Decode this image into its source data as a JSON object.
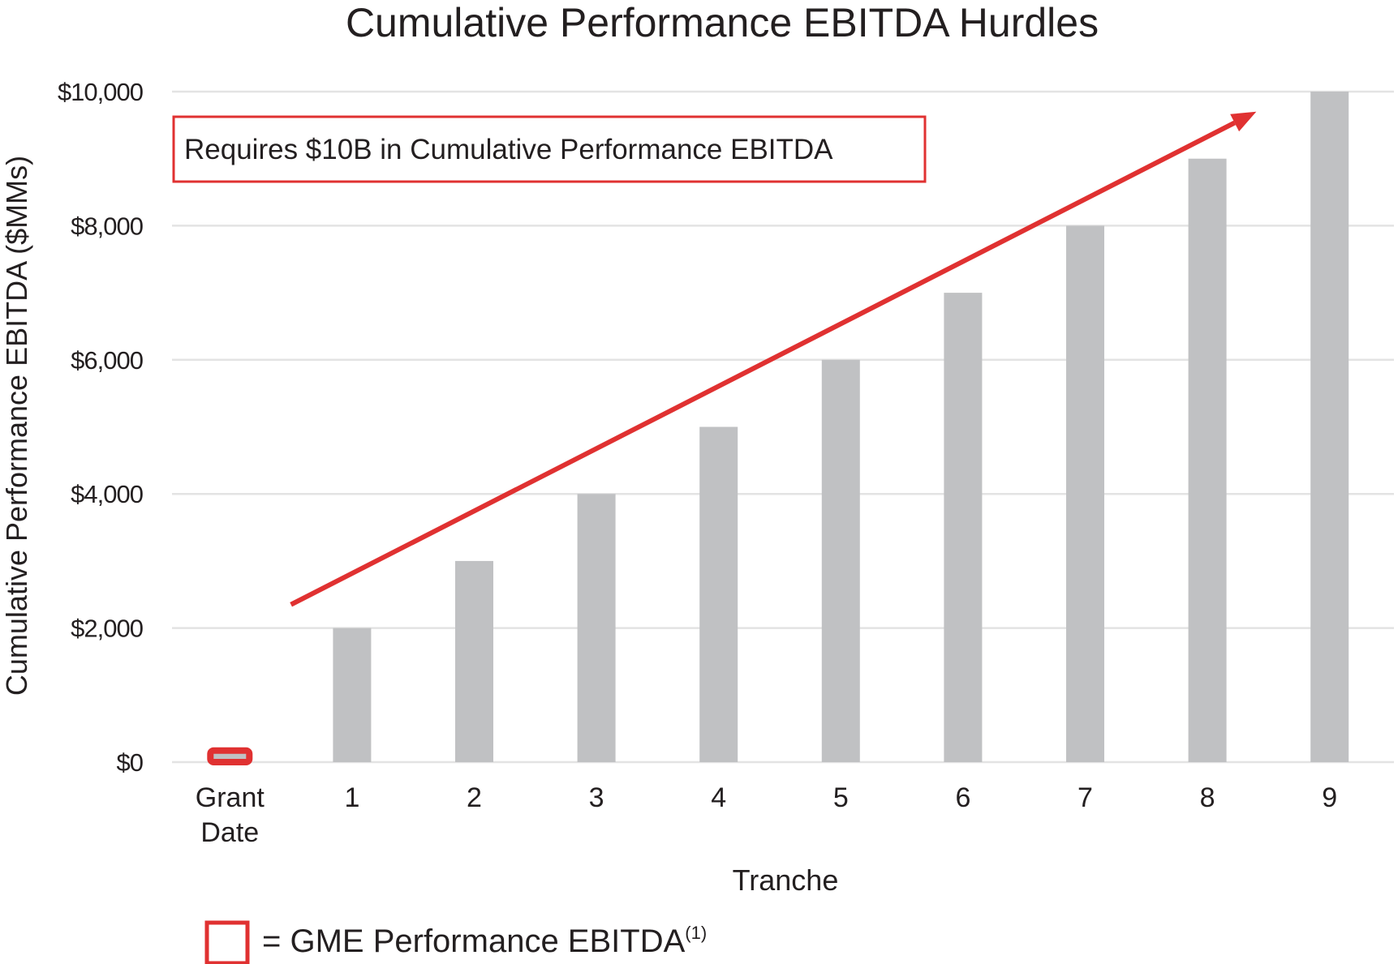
{
  "chart_data": {
    "type": "bar",
    "title": "Cumulative Performance EBITDA Hurdles",
    "xlabel": "Tranche",
    "ylabel": "Cumulative Performance EBITDA ($MMs)",
    "categories": [
      [
        "Grant",
        "Date"
      ],
      [
        "1"
      ],
      [
        "2"
      ],
      [
        "3"
      ],
      [
        "4"
      ],
      [
        "5"
      ],
      [
        "6"
      ],
      [
        "7"
      ],
      [
        "8"
      ],
      [
        "9"
      ]
    ],
    "values": [
      100,
      2000,
      3000,
      4000,
      5000,
      6000,
      7000,
      8000,
      9000,
      10000
    ],
    "highlighted": [
      true,
      false,
      false,
      false,
      false,
      false,
      false,
      false,
      false,
      false
    ],
    "ylim": [
      0,
      10000
    ],
    "yticks": [
      0,
      2000,
      4000,
      6000,
      8000,
      10000
    ],
    "ytick_labels": [
      "$0",
      "$2,000",
      "$4,000",
      "$6,000",
      "$8,000",
      "$10,000"
    ],
    "grid": true,
    "annotation": {
      "text": "Requires $10B in Cumulative Performance EBITDA",
      "arrow": {
        "from": {
          "category_index": 0.5,
          "value": 2350
        },
        "to": {
          "category_index": 8.4,
          "value": 9700
        }
      }
    },
    "legend": {
      "position": "bottom-left",
      "text": "= GME Performance EBITDA",
      "superscript": "(1)"
    },
    "colors": {
      "bar": "#c0c1c3",
      "highlight": "#e03131",
      "arrow": "#e03131",
      "grid": "#e3e3e3",
      "text": "#231f20"
    }
  }
}
